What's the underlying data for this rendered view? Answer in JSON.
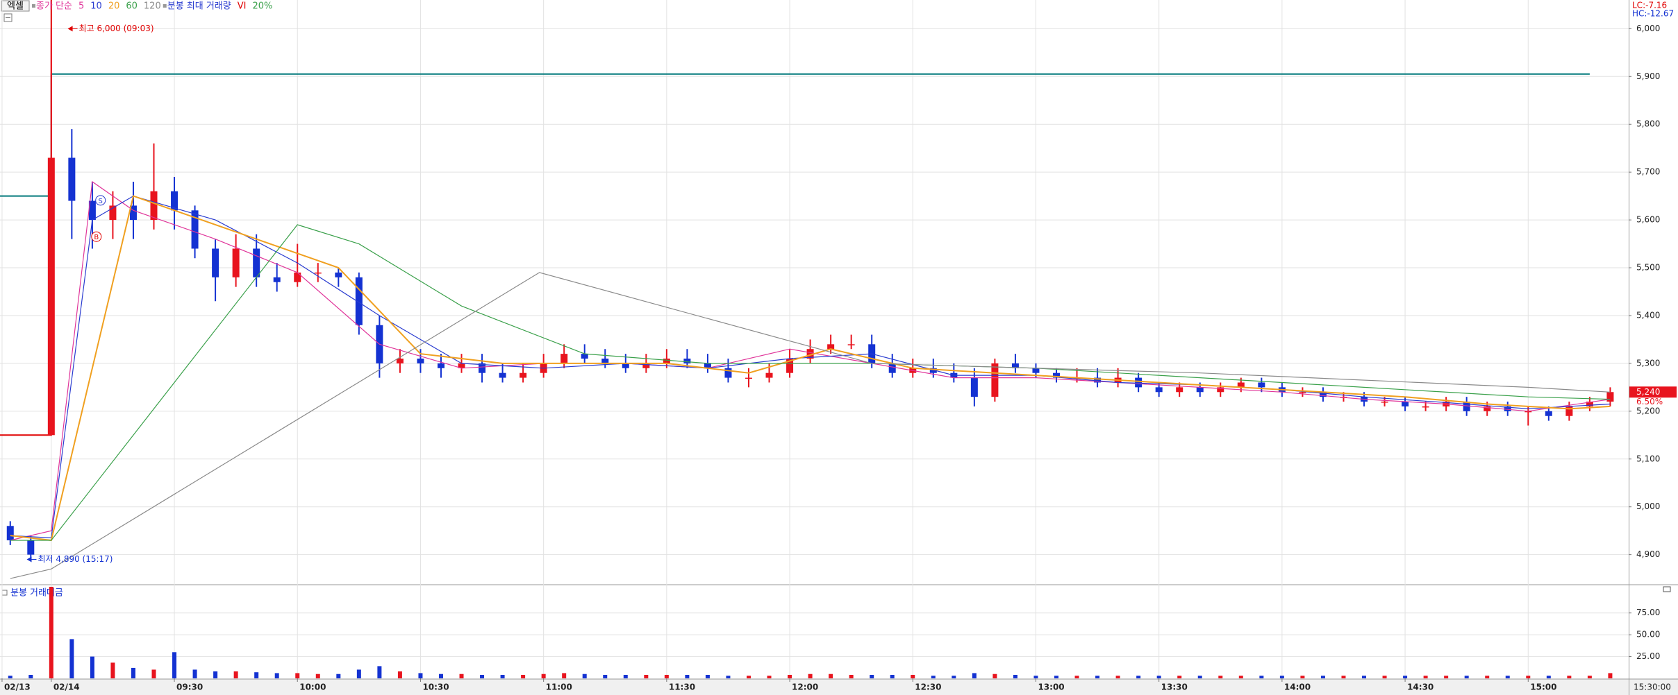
{
  "toolbar_label": "엑셀",
  "chart_data": {
    "type": "candlestick",
    "x": [
      -10,
      -5,
      0,
      5,
      10,
      15,
      20,
      25,
      30,
      35,
      40,
      45,
      50,
      55,
      60,
      65,
      70,
      75,
      80,
      85,
      90,
      95,
      100,
      105,
      110,
      115,
      120,
      125,
      130,
      135,
      140,
      145,
      150,
      155,
      160,
      165,
      170,
      175,
      180,
      185,
      190,
      195,
      200,
      205,
      210,
      215,
      220,
      225,
      230,
      235,
      240,
      245,
      250,
      255,
      260,
      265,
      270,
      275,
      280,
      285,
      290,
      295,
      300,
      305,
      310,
      315,
      320,
      325,
      330,
      335,
      340,
      345,
      350,
      355,
      360,
      365,
      370,
      375,
      380
    ],
    "open": [
      4960,
      4930,
      5150,
      5730,
      5640,
      5600,
      5630,
      5600,
      5660,
      5620,
      5540,
      5480,
      5540,
      5480,
      5470,
      5490,
      5490,
      5480,
      5380,
      5300,
      5310,
      5300,
      5290,
      5300,
      5280,
      5270,
      5280,
      5300,
      5320,
      5310,
      5300,
      5290,
      5300,
      5310,
      5300,
      5290,
      5270,
      5270,
      5280,
      5310,
      5330,
      5340,
      5340,
      5300,
      5280,
      5290,
      5280,
      5270,
      5230,
      5300,
      5290,
      5280,
      5270,
      5270,
      5260,
      5270,
      5250,
      5240,
      5250,
      5240,
      5250,
      5260,
      5250,
      5240,
      5240,
      5230,
      5230,
      5220,
      5220,
      5210,
      5210,
      5220,
      5200,
      5210,
      5200,
      5200,
      5190,
      5210,
      5220
    ],
    "high": [
      4970,
      4940,
      6000,
      5790,
      5680,
      5660,
      5680,
      5760,
      5690,
      5630,
      5560,
      5570,
      5570,
      5510,
      5550,
      5510,
      5500,
      5490,
      5400,
      5330,
      5330,
      5320,
      5320,
      5320,
      5300,
      5300,
      5320,
      5340,
      5340,
      5330,
      5320,
      5320,
      5330,
      5330,
      5320,
      5310,
      5290,
      5300,
      5330,
      5350,
      5360,
      5360,
      5360,
      5320,
      5310,
      5310,
      5300,
      5290,
      5310,
      5320,
      5300,
      5290,
      5290,
      5290,
      5290,
      5280,
      5260,
      5260,
      5260,
      5260,
      5270,
      5270,
      5260,
      5250,
      5250,
      5240,
      5240,
      5230,
      5230,
      5220,
      5230,
      5230,
      5220,
      5220,
      5210,
      5210,
      5220,
      5230,
      5250
    ],
    "low": [
      4920,
      4890,
      5150,
      5560,
      5540,
      5560,
      5560,
      5580,
      5580,
      5520,
      5430,
      5460,
      5460,
      5450,
      5460,
      5470,
      5460,
      5360,
      5270,
      5280,
      5280,
      5270,
      5280,
      5260,
      5260,
      5260,
      5270,
      5290,
      5300,
      5290,
      5280,
      5280,
      5290,
      5290,
      5280,
      5260,
      5250,
      5260,
      5270,
      5300,
      5320,
      5330,
      5290,
      5270,
      5270,
      5270,
      5260,
      5210,
      5220,
      5280,
      5270,
      5260,
      5260,
      5250,
      5250,
      5240,
      5230,
      5230,
      5230,
      5230,
      5240,
      5240,
      5230,
      5230,
      5220,
      5220,
      5210,
      5210,
      5200,
      5200,
      5200,
      5190,
      5190,
      5190,
      5170,
      5180,
      5180,
      5200,
      5210
    ],
    "close": [
      4930,
      4900,
      5730,
      5640,
      5600,
      5630,
      5600,
      5660,
      5620,
      5540,
      5480,
      5540,
      5480,
      5470,
      5490,
      5490,
      5480,
      5380,
      5300,
      5310,
      5300,
      5290,
      5300,
      5280,
      5270,
      5280,
      5300,
      5320,
      5310,
      5300,
      5290,
      5300,
      5310,
      5300,
      5290,
      5270,
      5270,
      5280,
      5310,
      5330,
      5340,
      5340,
      5300,
      5280,
      5290,
      5280,
      5270,
      5230,
      5300,
      5290,
      5280,
      5270,
      5270,
      5260,
      5270,
      5250,
      5240,
      5250,
      5240,
      5250,
      5260,
      5250,
      5240,
      5240,
      5230,
      5230,
      5220,
      5220,
      5210,
      5210,
      5220,
      5200,
      5210,
      5200,
      5200,
      5190,
      5210,
      5220,
      5240
    ],
    "up_color": "#e8141e",
    "down_color": "#1432d2",
    "xlim": [
      -12.5,
      384.5
    ],
    "xticks": [
      {
        "value": -12,
        "label": "02/13"
      },
      {
        "value": 0,
        "label": "02/14"
      },
      {
        "value": 30,
        "label": "09:30"
      },
      {
        "value": 60,
        "label": "10:00"
      },
      {
        "value": 90,
        "label": "10:30"
      },
      {
        "value": 120,
        "label": "11:00"
      },
      {
        "value": 150,
        "label": "11:30"
      },
      {
        "value": 180,
        "label": "12:00"
      },
      {
        "value": 210,
        "label": "12:30"
      },
      {
        "value": 240,
        "label": "13:00"
      },
      {
        "value": 270,
        "label": "13:30"
      },
      {
        "value": 300,
        "label": "14:00"
      },
      {
        "value": 330,
        "label": "14:30"
      },
      {
        "value": 360,
        "label": "15:00"
      }
    ],
    "axis_end_label": "15:30:00",
    "ylim": [
      4840,
      6060
    ],
    "yticks": [
      {
        "value": 6000,
        "label": "6,000"
      },
      {
        "value": 5900,
        "label": "5,900"
      },
      {
        "value": 5800,
        "label": "5,800"
      },
      {
        "value": 5700,
        "label": "5,700"
      },
      {
        "value": 5600,
        "label": "5,600"
      },
      {
        "value": 5500,
        "label": "5,500"
      },
      {
        "value": 5400,
        "label": "5,400"
      },
      {
        "value": 5300,
        "label": "5,300"
      },
      {
        "value": 5200,
        "label": "5,200"
      },
      {
        "value": 5100,
        "label": "5,100"
      },
      {
        "value": 5000,
        "label": "5,000"
      },
      {
        "value": 4900,
        "label": "4,900"
      }
    ],
    "grid": true,
    "legend_prefix": "종가 단순",
    "legend_prefix_color": "#e0359a",
    "series": [
      {
        "name": "5",
        "color": "#e0359a",
        "x": [
          -10,
          0,
          10,
          20,
          40,
          60,
          80,
          100,
          120,
          140,
          160,
          180,
          200,
          220,
          240,
          260,
          280,
          300,
          320,
          340,
          360,
          380
        ],
        "values": [
          4930,
          4950,
          5680,
          5620,
          5560,
          5490,
          5340,
          5290,
          5300,
          5300,
          5290,
          5330,
          5300,
          5270,
          5270,
          5260,
          5250,
          5240,
          5225,
          5215,
          5200,
          5225
        ]
      },
      {
        "name": "10",
        "color": "#2a3cd0",
        "x": [
          -10,
          0,
          10,
          20,
          40,
          60,
          80,
          100,
          120,
          140,
          160,
          180,
          200,
          220,
          240,
          260,
          280,
          300,
          320,
          340,
          360,
          380
        ],
        "values": [
          4940,
          4935,
          5600,
          5650,
          5600,
          5510,
          5400,
          5300,
          5290,
          5300,
          5290,
          5310,
          5320,
          5275,
          5275,
          5260,
          5255,
          5245,
          5230,
          5218,
          5205,
          5215
        ]
      },
      {
        "name": "20",
        "color": "#f0a020",
        "x": [
          -10,
          0,
          20,
          30,
          50,
          70,
          90,
          110,
          130,
          150,
          170,
          190,
          210,
          230,
          250,
          270,
          290,
          310,
          330,
          350,
          370,
          380
        ],
        "values": [
          4940,
          4930,
          5650,
          5620,
          5560,
          5500,
          5320,
          5300,
          5300,
          5300,
          5280,
          5330,
          5290,
          5280,
          5270,
          5260,
          5250,
          5240,
          5230,
          5215,
          5205,
          5210
        ]
      },
      {
        "name": "60",
        "color": "#3aa04a",
        "x": [
          -10,
          0,
          60,
          75,
          100,
          130,
          160,
          200,
          240,
          280,
          320,
          360,
          380
        ],
        "values": [
          4930,
          4930,
          5590,
          5550,
          5420,
          5320,
          5300,
          5300,
          5290,
          5270,
          5250,
          5230,
          5225
        ]
      },
      {
        "name": "120",
        "color": "#8a8a8a",
        "x": [
          -10,
          0,
          119,
          200,
          280,
          360,
          380
        ],
        "values": [
          4850,
          4870,
          5490,
          5300,
          5280,
          5250,
          5240
        ]
      }
    ],
    "legend_extra": [
      {
        "name": "분봉 최대 거래량",
        "color": "#2a3cd0"
      },
      {
        "name": "VI",
        "color": "#e00000"
      },
      {
        "name": "20%",
        "color": "#3aa04a"
      }
    ],
    "levels": [
      {
        "color": "#00787a",
        "x": [
          -12.5,
          0,
          0,
          375
        ],
        "values": [
          5650,
          5650,
          5905,
          5905
        ]
      },
      {
        "color": "#e00000",
        "x": [
          -12.5,
          0,
          0
        ],
        "values": [
          5150,
          5150,
          6695
        ]
      }
    ],
    "annotations": [
      {
        "text": "최고 6,000 (09:03)",
        "x": 3,
        "y": 6000,
        "color": "#e00000"
      },
      {
        "text": "최저 4,890 (15:17)",
        "x": -7,
        "y": 4890,
        "color": "#1432d2"
      }
    ],
    "markers": [
      {
        "text": "S",
        "x": 12,
        "y": 5641,
        "color": "#2a3cd0"
      },
      {
        "text": "B",
        "x": 11,
        "y": 5565,
        "color": "#e00000"
      }
    ],
    "current_price": {
      "value": 5240,
      "label": "5,240"
    },
    "change_label": "6.50%",
    "lc_label": "LC:-7.16",
    "hc_label": "HC:-12.67",
    "volume": {
      "title": "분봉 거래대금",
      "values": [
        3,
        4,
        160,
        45,
        25,
        18,
        12,
        10,
        30,
        10,
        8,
        8,
        7,
        6,
        6,
        5,
        5,
        10,
        14,
        8,
        6,
        5,
        5,
        4,
        4,
        4,
        5,
        6,
        5,
        4,
        4,
        4,
        4,
        4,
        4,
        3,
        3,
        3,
        4,
        5,
        5,
        4,
        4,
        4,
        4,
        3,
        3,
        6,
        5,
        4,
        3,
        3,
        3,
        3,
        3,
        3,
        3,
        3,
        3,
        3,
        3,
        3,
        3,
        3,
        3,
        3,
        3,
        3,
        3,
        3,
        3,
        3,
        3,
        3,
        3,
        3,
        3,
        3,
        6
      ],
      "ylim": [
        0,
        105
      ],
      "yticks": [
        {
          "value": 75,
          "label": "75.00"
        },
        {
          "value": 50,
          "label": "50.00"
        },
        {
          "value": 25,
          "label": "25.00"
        }
      ]
    }
  }
}
